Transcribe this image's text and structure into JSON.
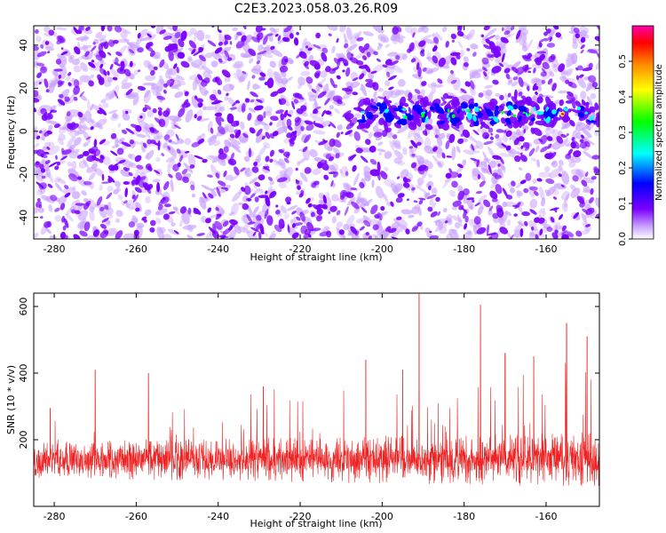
{
  "title": "C2E3.2023.058.03.26.R09",
  "colors": {
    "snr_line": "#ee2222",
    "colormap": [
      "#ffffff",
      "#c8a0ff",
      "#7a00ff",
      "#0000ff",
      "#00ffff",
      "#00ff00",
      "#ffff00",
      "#ff8800",
      "#ff0000",
      "#ff00aa"
    ]
  },
  "chart_data": [
    {
      "type": "heatmap",
      "name": "spectrogram",
      "xlabel": "Height of straight line (km)",
      "ylabel": "Frequency (Hz)",
      "xlim": [
        -285,
        -147
      ],
      "ylim": [
        -50,
        49
      ],
      "x_ticks": [
        -280,
        -260,
        -240,
        -220,
        -200,
        -180,
        -160
      ],
      "y_ticks": [
        -40,
        -20,
        0,
        20,
        40
      ],
      "signal_band": {
        "x_start": -206,
        "x_end": -147,
        "frequency_center": 8,
        "frequency_halfwidth": 6
      },
      "colorbar": {
        "label": "Normalized spectral amplitude",
        "range": [
          0.0,
          0.6
        ],
        "ticks": [
          0.0,
          0.1,
          0.2,
          0.3,
          0.4,
          0.5
        ]
      }
    },
    {
      "type": "line",
      "name": "snr",
      "xlabel": "Height of straight line (km)",
      "ylabel": "SNR (10 * v/v)",
      "xlim": [
        -285,
        -147
      ],
      "ylim": [
        0,
        640
      ],
      "x_ticks": [
        -280,
        -260,
        -240,
        -220,
        -200,
        -180,
        -160
      ],
      "y_ticks": [
        200,
        400,
        600
      ],
      "baseline_mean": 140,
      "baseline_spread": 55,
      "notable_peaks": [
        {
          "x": -281,
          "y": 295
        },
        {
          "x": -270,
          "y": 410
        },
        {
          "x": -257,
          "y": 400
        },
        {
          "x": -229,
          "y": 360
        },
        {
          "x": -204,
          "y": 440
        },
        {
          "x": -195,
          "y": 410
        },
        {
          "x": -191,
          "y": 640
        },
        {
          "x": -176,
          "y": 605
        },
        {
          "x": -170,
          "y": 460
        },
        {
          "x": -163,
          "y": 450
        },
        {
          "x": -155,
          "y": 550
        },
        {
          "x": -150,
          "y": 510
        }
      ]
    }
  ]
}
